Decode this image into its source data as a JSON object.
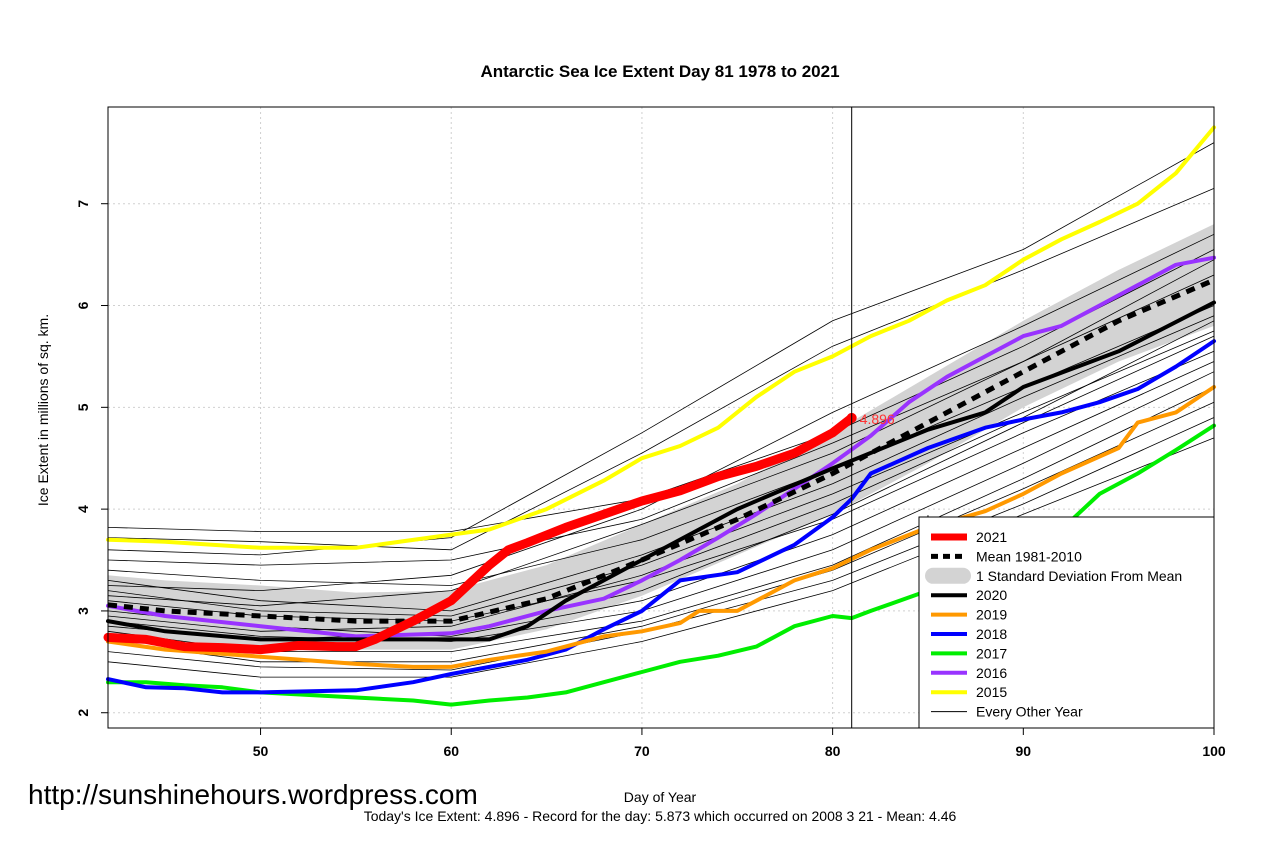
{
  "chart_data": {
    "type": "line",
    "title": "Antarctic Sea Ice Extent Day 81 1978 to 2021",
    "xlabel": "Day of Year",
    "ylabel": "Ice Extent in millions of sq. km.",
    "xlim": [
      42,
      100
    ],
    "ylim": [
      1.85,
      7.95
    ],
    "x_ticks": [
      50,
      60,
      70,
      80,
      90,
      100
    ],
    "y_ticks": [
      2,
      3,
      4,
      5,
      6,
      7
    ],
    "grid": true,
    "legend_position": "bottom-right",
    "current_day_line": 81,
    "secondary_line": 85,
    "current_value_label": "4.896",
    "footer": "Today's Ice Extent: 4.896  - Record for the day: 5.873 which occurred on 2008 3 21  - Mean: 4.46",
    "watermark": "http://sunshinehours.wordpress.com",
    "band": {
      "name": "1 Standard Deviation From Mean",
      "color": "#d3d3d3",
      "x": [
        42,
        45,
        50,
        55,
        60,
        65,
        70,
        75,
        80,
        85,
        90,
        95,
        100
      ],
      "upper": [
        3.35,
        3.3,
        3.25,
        3.18,
        3.2,
        3.45,
        3.85,
        4.25,
        4.75,
        5.3,
        5.85,
        6.35,
        6.8
      ],
      "lower": [
        2.78,
        2.7,
        2.66,
        2.62,
        2.62,
        2.82,
        3.15,
        3.55,
        3.95,
        4.45,
        5.0,
        5.45,
        5.8
      ]
    },
    "series": [
      {
        "name": "2021",
        "color": "#ff0000",
        "width": 9,
        "x": [
          42,
          44,
          46,
          48,
          50,
          52,
          54,
          55,
          56,
          58,
          60,
          62,
          63,
          64,
          66,
          68,
          70,
          72,
          74,
          76,
          78,
          80,
          81
        ],
        "y": [
          2.74,
          2.72,
          2.65,
          2.64,
          2.62,
          2.66,
          2.65,
          2.65,
          2.72,
          2.9,
          3.1,
          3.45,
          3.6,
          3.67,
          3.82,
          3.95,
          4.08,
          4.18,
          4.32,
          4.42,
          4.55,
          4.75,
          4.896
        ]
      },
      {
        "name": "Mean 1981-2010",
        "color": "#000000",
        "width": 5,
        "dash": "9,7",
        "x": [
          42,
          45,
          50,
          55,
          60,
          65,
          70,
          75,
          80,
          85,
          90,
          95,
          100
        ],
        "y": [
          3.06,
          3.0,
          2.95,
          2.9,
          2.9,
          3.12,
          3.5,
          3.9,
          4.35,
          4.85,
          5.35,
          5.85,
          6.25
        ]
      },
      {
        "name": "2020",
        "color": "#000000",
        "width": 4,
        "x": [
          42,
          45,
          50,
          55,
          60,
          62,
          64,
          66,
          70,
          75,
          80,
          85,
          88,
          90,
          95,
          100
        ],
        "y": [
          2.9,
          2.8,
          2.72,
          2.72,
          2.72,
          2.72,
          2.85,
          3.1,
          3.5,
          4.0,
          4.4,
          4.78,
          4.95,
          5.2,
          5.55,
          6.03
        ]
      },
      {
        "name": "2019",
        "color": "#ff9900",
        "width": 4,
        "x": [
          42,
          45,
          50,
          55,
          58,
          60,
          62,
          65,
          68,
          70,
          72,
          73,
          75,
          78,
          80,
          82,
          85,
          88,
          90,
          92,
          95,
          96,
          98,
          100
        ],
        "y": [
          2.7,
          2.62,
          2.55,
          2.48,
          2.45,
          2.45,
          2.52,
          2.6,
          2.75,
          2.8,
          2.88,
          3.0,
          3.0,
          3.3,
          3.42,
          3.6,
          3.82,
          3.98,
          4.15,
          4.35,
          4.6,
          4.85,
          4.95,
          5.2
        ]
      },
      {
        "name": "2018",
        "color": "#0000ff",
        "width": 4,
        "x": [
          42,
          44,
          46,
          48,
          50,
          55,
          58,
          60,
          62,
          64,
          66,
          68,
          70,
          72,
          75,
          78,
          80,
          81,
          82,
          85,
          88,
          90,
          92,
          94,
          96,
          98,
          100
        ],
        "y": [
          2.33,
          2.25,
          2.24,
          2.2,
          2.2,
          2.22,
          2.3,
          2.38,
          2.45,
          2.52,
          2.62,
          2.82,
          3.0,
          3.3,
          3.38,
          3.65,
          3.92,
          4.1,
          4.35,
          4.6,
          4.8,
          4.88,
          4.95,
          5.05,
          5.18,
          5.4,
          5.65
        ]
      },
      {
        "name": "2017",
        "color": "#00ee00",
        "width": 4,
        "x": [
          42,
          44,
          46,
          48,
          50,
          55,
          58,
          60,
          62,
          64,
          66,
          68,
          70,
          72,
          74,
          76,
          78,
          80,
          81,
          82,
          85,
          88,
          90,
          92,
          94,
          96,
          98,
          100
        ],
        "y": [
          2.3,
          2.3,
          2.27,
          2.25,
          2.2,
          2.15,
          2.12,
          2.08,
          2.12,
          2.15,
          2.2,
          2.3,
          2.4,
          2.5,
          2.56,
          2.65,
          2.85,
          2.95,
          2.93,
          3.0,
          3.2,
          3.4,
          3.55,
          3.8,
          4.15,
          4.35,
          4.58,
          4.82
        ]
      },
      {
        "name": "2016",
        "color": "#9933ff",
        "width": 4,
        "x": [
          42,
          45,
          50,
          55,
          60,
          62,
          65,
          68,
          70,
          72,
          74,
          76,
          78,
          80,
          82,
          84,
          86,
          88,
          90,
          92,
          94,
          96,
          98,
          100
        ],
        "y": [
          3.05,
          2.95,
          2.85,
          2.75,
          2.78,
          2.85,
          3.0,
          3.12,
          3.3,
          3.5,
          3.72,
          3.95,
          4.2,
          4.45,
          4.72,
          5.05,
          5.3,
          5.5,
          5.7,
          5.8,
          6.0,
          6.2,
          6.4,
          6.47
        ]
      },
      {
        "name": "2015",
        "color": "#ffff00",
        "width": 4,
        "x": [
          42,
          45,
          50,
          55,
          60,
          62,
          65,
          68,
          70,
          72,
          74,
          76,
          78,
          80,
          82,
          84,
          86,
          88,
          90,
          92,
          94,
          96,
          98,
          100
        ],
        "y": [
          3.7,
          3.68,
          3.62,
          3.62,
          3.75,
          3.8,
          4.0,
          4.28,
          4.5,
          4.62,
          4.8,
          5.1,
          5.35,
          5.5,
          5.7,
          5.85,
          6.05,
          6.2,
          6.45,
          6.65,
          6.82,
          7.0,
          7.3,
          7.75
        ]
      },
      {
        "name": "Every Other Year",
        "color": "#000000",
        "width": 1
      }
    ],
    "thin_series": [
      {
        "x": [
          42,
          50,
          60,
          70,
          80,
          90,
          100
        ],
        "y": [
          3.82,
          3.78,
          3.78,
          4.1,
          4.75,
          5.6,
          6.55
        ]
      },
      {
        "x": [
          42,
          50,
          60,
          70,
          80,
          90,
          100
        ],
        "y": [
          3.72,
          3.68,
          3.6,
          4.55,
          5.6,
          6.35,
          7.15
        ]
      },
      {
        "x": [
          42,
          50,
          60,
          70,
          80,
          90,
          100
        ],
        "y": [
          3.6,
          3.55,
          3.72,
          4.75,
          5.85,
          6.55,
          7.6
        ]
      },
      {
        "x": [
          42,
          50,
          60,
          70,
          80,
          90,
          100
        ],
        "y": [
          3.5,
          3.45,
          3.5,
          3.9,
          4.65,
          5.45,
          6.3
        ]
      },
      {
        "x": [
          42,
          50,
          60,
          70,
          80,
          90,
          100
        ],
        "y": [
          3.4,
          3.3,
          3.25,
          3.7,
          4.4,
          5.2,
          6.0
        ]
      },
      {
        "x": [
          42,
          50,
          60,
          70,
          80,
          90,
          100
        ],
        "y": [
          3.3,
          3.1,
          3.0,
          3.55,
          4.25,
          5.1,
          5.9
        ]
      },
      {
        "x": [
          42,
          50,
          60,
          70,
          80,
          90,
          100
        ],
        "y": [
          3.2,
          3.0,
          2.95,
          3.45,
          4.15,
          4.95,
          5.75
        ]
      },
      {
        "x": [
          42,
          50,
          60,
          70,
          80,
          90,
          100
        ],
        "y": [
          3.1,
          2.95,
          2.9,
          3.3,
          3.9,
          4.75,
          5.55
        ]
      },
      {
        "x": [
          42,
          50,
          60,
          70,
          80,
          90,
          100
        ],
        "y": [
          3.0,
          2.85,
          2.75,
          3.1,
          3.75,
          4.6,
          5.45
        ]
      },
      {
        "x": [
          42,
          50,
          60,
          70,
          80,
          90,
          100
        ],
        "y": [
          2.9,
          2.75,
          2.7,
          3.0,
          3.6,
          4.45,
          5.35
        ]
      },
      {
        "x": [
          42,
          50,
          60,
          70,
          80,
          90,
          100
        ],
        "y": [
          2.8,
          2.6,
          2.6,
          2.9,
          3.45,
          4.3,
          5.2
        ]
      },
      {
        "x": [
          42,
          50,
          60,
          70,
          80,
          90,
          100
        ],
        "y": [
          2.7,
          2.5,
          2.5,
          2.85,
          3.4,
          4.2,
          5.05
        ]
      },
      {
        "x": [
          42,
          50,
          60,
          70,
          80,
          90,
          100
        ],
        "y": [
          2.6,
          2.45,
          2.42,
          2.8,
          3.3,
          4.05,
          4.9
        ]
      },
      {
        "x": [
          42,
          50,
          60,
          70,
          80,
          90,
          100
        ],
        "y": [
          2.5,
          2.35,
          2.35,
          2.7,
          3.2,
          3.95,
          4.7
        ]
      },
      {
        "x": [
          42,
          50,
          60,
          70,
          80,
          90,
          100
        ],
        "y": [
          3.25,
          3.2,
          3.35,
          4.0,
          4.95,
          5.8,
          6.7
        ]
      },
      {
        "x": [
          42,
          50,
          60,
          70,
          80,
          90,
          100
        ],
        "y": [
          3.15,
          3.05,
          3.2,
          3.85,
          4.55,
          5.45,
          6.45
        ]
      },
      {
        "x": [
          42,
          50,
          60,
          70,
          80,
          90,
          100
        ],
        "y": [
          2.95,
          2.8,
          2.85,
          3.35,
          4.05,
          4.9,
          5.85
        ]
      },
      {
        "x": [
          42,
          50,
          60,
          70,
          80,
          90,
          100
        ],
        "y": [
          2.85,
          2.72,
          2.78,
          3.2,
          3.95,
          4.85,
          5.7
        ]
      }
    ]
  }
}
